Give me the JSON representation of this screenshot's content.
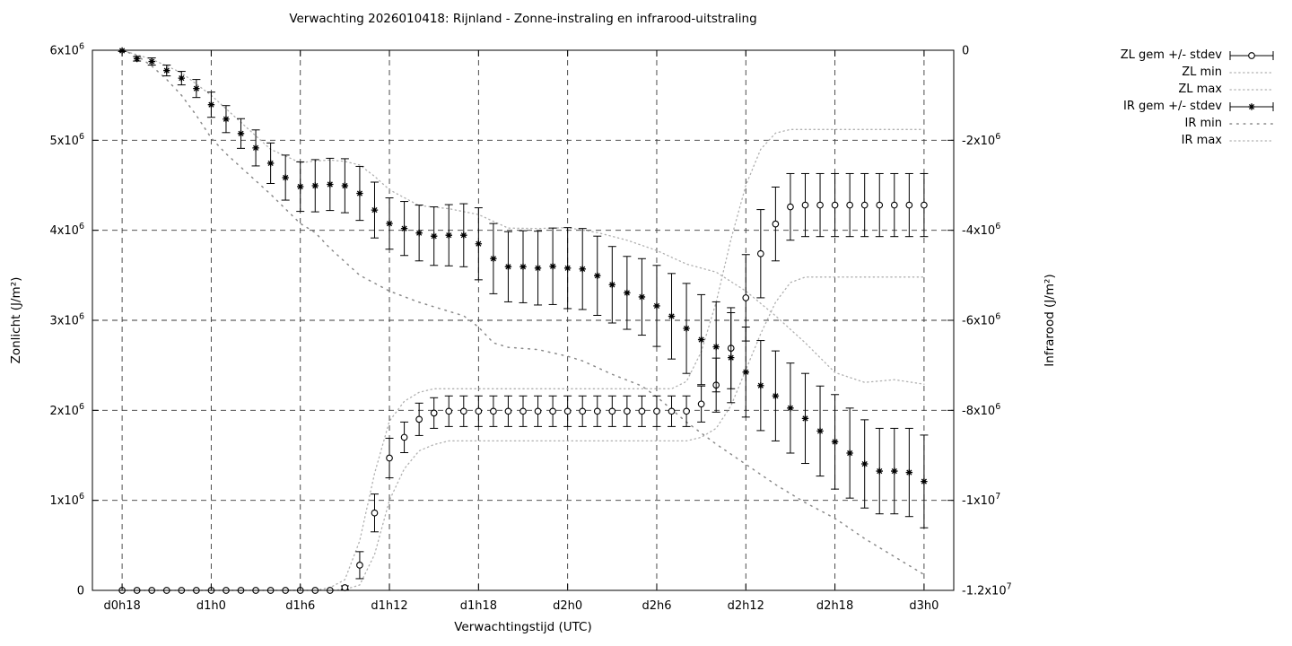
{
  "chart_data": {
    "type": "line",
    "title": "Verwachting 2026010418: Rijnland - Zonne-instraling en infrarood-uitstraling",
    "xlabel": "Verwachtingstijd (UTC)",
    "ylabel_left": "Zonlicht (J/m²)",
    "ylabel_right": "Infrarood (J/m²)",
    "value_unit": "10^6 J/m^2",
    "x_step_hours": 1,
    "x_domain_hours": [
      -2,
      56
    ],
    "x_ticks": {
      "hours": [
        0,
        6,
        12,
        18,
        24,
        30,
        36,
        42,
        48,
        54
      ],
      "labels": [
        "d0h18",
        "d1h0",
        "d1h6",
        "d1h12",
        "d1h18",
        "d2h0",
        "d2h6",
        "d2h12",
        "d2h18",
        "d3h0"
      ]
    },
    "y_left": {
      "domain_millions": [
        0,
        6
      ],
      "tick_labels": [
        "0",
        "1x10^6",
        "2x10^6",
        "3x10^6",
        "4x10^6",
        "5x10^6",
        "6x10^6"
      ]
    },
    "y_right": {
      "domain_millions": [
        -12,
        0
      ],
      "tick_labels": [
        "0",
        "-2x10^6",
        "-4x10^6",
        "-6x10^6",
        "-8x10^6",
        "-1x10^7",
        "-1.2x10^7"
      ]
    },
    "grid": true,
    "legend_position": "outside-top-right",
    "legend": [
      {
        "label": "ZL gem +/- stdev",
        "style": "errorbar-circle"
      },
      {
        "label": "ZL min",
        "style": "dots-fine"
      },
      {
        "label": "ZL max",
        "style": "dots-fine"
      },
      {
        "label": "IR gem +/- stdev",
        "style": "errorbar-star"
      },
      {
        "label": "IR min",
        "style": "dots-sparse"
      },
      {
        "label": "IR max",
        "style": "dots-fine"
      }
    ],
    "series": [
      {
        "name": "ZL gem +/- stdev",
        "axis": "left",
        "marker": "circle",
        "kind": "errorbars",
        "values": [
          0,
          0,
          0,
          0,
          0,
          0,
          0,
          0,
          0,
          0,
          0,
          0,
          0,
          0,
          0,
          0.03,
          0.28,
          0.86,
          1.47,
          1.7,
          1.9,
          1.97,
          1.99,
          1.99,
          1.99,
          1.99,
          1.99,
          1.99,
          1.99,
          1.99,
          1.99,
          1.99,
          1.99,
          1.99,
          1.99,
          1.99,
          1.99,
          1.99,
          1.99,
          2.07,
          2.28,
          2.69,
          3.25,
          3.74,
          4.07,
          4.26,
          4.28,
          4.28,
          4.28,
          4.28,
          4.28,
          4.28,
          4.28,
          4.28,
          4.28
        ],
        "stdev": [
          0,
          0,
          0,
          0,
          0,
          0,
          0,
          0,
          0,
          0,
          0,
          0,
          0,
          0,
          0,
          0.02,
          0.15,
          0.21,
          0.22,
          0.17,
          0.18,
          0.17,
          0.17,
          0.17,
          0.17,
          0.17,
          0.17,
          0.17,
          0.17,
          0.17,
          0.17,
          0.17,
          0.17,
          0.17,
          0.17,
          0.17,
          0.17,
          0.17,
          0.17,
          0.2,
          0.3,
          0.45,
          0.48,
          0.49,
          0.41,
          0.37,
          0.35,
          0.35,
          0.35,
          0.35,
          0.35,
          0.35,
          0.35,
          0.35,
          0.35
        ]
      },
      {
        "name": "ZL min",
        "axis": "left",
        "kind": "envelope",
        "style": "dots-fine",
        "points": [
          [
            0,
            0
          ],
          [
            14,
            0
          ],
          [
            15,
            0.01
          ],
          [
            16,
            0.06
          ],
          [
            17,
            0.4
          ],
          [
            18,
            1.0
          ],
          [
            19,
            1.35
          ],
          [
            20,
            1.55
          ],
          [
            21,
            1.62
          ],
          [
            22,
            1.66
          ],
          [
            38,
            1.66
          ],
          [
            39,
            1.7
          ],
          [
            40,
            1.8
          ],
          [
            41,
            2.05
          ],
          [
            42,
            2.45
          ],
          [
            43,
            2.85
          ],
          [
            44,
            3.2
          ],
          [
            45,
            3.42
          ],
          [
            46,
            3.48
          ],
          [
            54,
            3.48
          ]
        ]
      },
      {
        "name": "ZL max",
        "axis": "left",
        "kind": "envelope",
        "style": "dots-fine",
        "points": [
          [
            0,
            0
          ],
          [
            13,
            0
          ],
          [
            14,
            0.03
          ],
          [
            15,
            0.12
          ],
          [
            16,
            0.55
          ],
          [
            17,
            1.3
          ],
          [
            18,
            1.88
          ],
          [
            19,
            2.1
          ],
          [
            20,
            2.2
          ],
          [
            21,
            2.24
          ],
          [
            37,
            2.24
          ],
          [
            38,
            2.32
          ],
          [
            39,
            2.65
          ],
          [
            40,
            3.2
          ],
          [
            41,
            3.9
          ],
          [
            42,
            4.5
          ],
          [
            43,
            4.9
          ],
          [
            44,
            5.08
          ],
          [
            45,
            5.12
          ],
          [
            54,
            5.12
          ]
        ]
      },
      {
        "name": "IR gem +/- stdev",
        "axis": "right",
        "marker": "star",
        "kind": "errorbars",
        "values": [
          -0.01,
          -0.19,
          -0.25,
          -0.45,
          -0.62,
          -0.85,
          -1.21,
          -1.53,
          -1.85,
          -2.17,
          -2.51,
          -2.83,
          -3.03,
          -3.01,
          -2.98,
          -3.01,
          -3.18,
          -3.55,
          -3.85,
          -3.96,
          -4.06,
          -4.13,
          -4.11,
          -4.11,
          -4.3,
          -4.63,
          -4.81,
          -4.81,
          -4.84,
          -4.8,
          -4.84,
          -4.86,
          -5.01,
          -5.21,
          -5.39,
          -5.48,
          -5.68,
          -5.91,
          -6.18,
          -6.43,
          -6.59,
          -6.83,
          -7.15,
          -7.45,
          -7.68,
          -7.95,
          -8.18,
          -8.46,
          -8.7,
          -8.95,
          -9.19,
          -9.35,
          -9.35,
          -9.38,
          -9.58
        ],
        "stdev": [
          0.02,
          0.05,
          0.08,
          0.12,
          0.15,
          0.2,
          0.28,
          0.3,
          0.33,
          0.4,
          0.45,
          0.5,
          0.55,
          0.58,
          0.58,
          0.6,
          0.6,
          0.62,
          0.57,
          0.6,
          0.62,
          0.65,
          0.68,
          0.7,
          0.8,
          0.78,
          0.78,
          0.8,
          0.82,
          0.85,
          0.9,
          0.9,
          0.88,
          0.85,
          0.81,
          0.85,
          0.9,
          0.95,
          1.0,
          1.0,
          1.0,
          1.0,
          1.0,
          1.0,
          1.0,
          1.0,
          1.0,
          1.0,
          1.05,
          1.0,
          0.98,
          0.95,
          0.95,
          0.98,
          1.03
        ]
      },
      {
        "name": "IR min",
        "axis": "right",
        "kind": "envelope",
        "style": "dots-sparse",
        "points": [
          [
            0,
            0
          ],
          [
            1,
            -0.12
          ],
          [
            2,
            -0.35
          ],
          [
            3,
            -0.65
          ],
          [
            4,
            -1.0
          ],
          [
            5,
            -1.45
          ],
          [
            6,
            -1.95
          ],
          [
            7,
            -2.3
          ],
          [
            8,
            -2.6
          ],
          [
            10,
            -3.2
          ],
          [
            12,
            -3.85
          ],
          [
            13,
            -4.05
          ],
          [
            14,
            -4.4
          ],
          [
            16,
            -5.0
          ],
          [
            18,
            -5.35
          ],
          [
            20,
            -5.6
          ],
          [
            23,
            -5.9
          ],
          [
            24,
            -6.15
          ],
          [
            25,
            -6.5
          ],
          [
            26,
            -6.6
          ],
          [
            28,
            -6.65
          ],
          [
            30,
            -6.8
          ],
          [
            31,
            -6.9
          ],
          [
            33,
            -7.2
          ],
          [
            35,
            -7.46
          ],
          [
            36,
            -7.7
          ],
          [
            38,
            -8.26
          ],
          [
            40,
            -8.75
          ],
          [
            42,
            -9.2
          ],
          [
            44,
            -9.65
          ],
          [
            46,
            -10.05
          ],
          [
            48,
            -10.4
          ],
          [
            50,
            -10.85
          ],
          [
            52,
            -11.25
          ],
          [
            54,
            -11.65
          ]
        ]
      },
      {
        "name": "IR max",
        "axis": "right",
        "kind": "envelope",
        "style": "dots-fine",
        "points": [
          [
            0,
            0
          ],
          [
            2,
            -0.2
          ],
          [
            4,
            -0.5
          ],
          [
            6,
            -1.0
          ],
          [
            8,
            -1.6
          ],
          [
            10,
            -2.2
          ],
          [
            12,
            -2.5
          ],
          [
            13,
            -2.46
          ],
          [
            14,
            -2.44
          ],
          [
            15,
            -2.47
          ],
          [
            16,
            -2.55
          ],
          [
            17,
            -2.8
          ],
          [
            18,
            -3.1
          ],
          [
            20,
            -3.45
          ],
          [
            22,
            -3.52
          ],
          [
            24,
            -3.65
          ],
          [
            26,
            -3.95
          ],
          [
            28,
            -3.96
          ],
          [
            30,
            -3.94
          ],
          [
            32,
            -4.05
          ],
          [
            34,
            -4.22
          ],
          [
            36,
            -4.45
          ],
          [
            38,
            -4.75
          ],
          [
            40,
            -4.93
          ],
          [
            42,
            -5.35
          ],
          [
            44,
            -5.9
          ],
          [
            46,
            -6.5
          ],
          [
            48,
            -7.16
          ],
          [
            50,
            -7.38
          ],
          [
            52,
            -7.32
          ],
          [
            54,
            -7.42
          ]
        ]
      }
    ],
    "colors": {
      "mean": "#000000",
      "envelope_fine": "#b0b0b0",
      "envelope_sparse": "#8a8a8a",
      "grid": "#3a3a3a",
      "background": "#ffffff"
    }
  }
}
